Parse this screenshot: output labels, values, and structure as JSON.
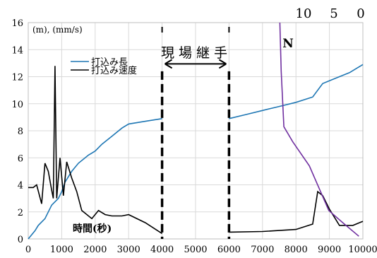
{
  "chart_data": {
    "type": "line",
    "title": "",
    "xlabel": "時間(秒)",
    "ylabel": "(m), (mm/s)",
    "xlim": [
      0,
      10000
    ],
    "ylim": [
      0,
      16
    ],
    "x_ticks": [
      "0",
      "1000",
      "2000",
      "3000",
      "4000",
      "5000",
      "6000",
      "7000",
      "8000",
      "9000",
      "10000"
    ],
    "y_ticks": [
      "0",
      "2",
      "4",
      "6",
      "8",
      "10",
      "12",
      "14",
      "16"
    ],
    "top_axis_ticks": [
      "10",
      "5",
      "0"
    ],
    "annotations": {
      "joint": "現 場 継 手",
      "n_label": "N"
    },
    "series": [
      {
        "name": "打込み長",
        "color": "#1f77b4",
        "segments": [
          [
            [
              0,
              0
            ],
            [
              200,
              0.6
            ],
            [
              300,
              1.0
            ],
            [
              500,
              1.5
            ],
            [
              700,
              2.5
            ],
            [
              900,
              3.0
            ],
            [
              1000,
              3.5
            ],
            [
              1100,
              4.2
            ],
            [
              1300,
              5.0
            ],
            [
              1500,
              5.6
            ],
            [
              1800,
              6.2
            ],
            [
              2000,
              6.5
            ],
            [
              2200,
              7.0
            ],
            [
              2500,
              7.6
            ],
            [
              2800,
              8.2
            ],
            [
              3000,
              8.5
            ],
            [
              3500,
              8.7
            ],
            [
              4000,
              8.9
            ]
          ],
          [
            [
              6000,
              8.9
            ],
            [
              6500,
              9.2
            ],
            [
              7000,
              9.5
            ],
            [
              7500,
              9.8
            ],
            [
              8000,
              10.1
            ],
            [
              8500,
              10.5
            ],
            [
              8800,
              11.5
            ],
            [
              9200,
              11.9
            ],
            [
              9600,
              12.3
            ],
            [
              10000,
              12.9
            ]
          ]
        ]
      },
      {
        "name": "打込み速度",
        "color": "#000000",
        "segments": [
          [
            [
              0,
              3.8
            ],
            [
              150,
              3.8
            ],
            [
              250,
              4.0
            ],
            [
              400,
              2.6
            ],
            [
              500,
              5.6
            ],
            [
              600,
              5.0
            ],
            [
              700,
              3.6
            ],
            [
              750,
              3.0
            ],
            [
              800,
              12.8
            ],
            [
              850,
              3.0
            ],
            [
              950,
              6.0
            ],
            [
              1050,
              3.2
            ],
            [
              1150,
              5.7
            ],
            [
              1300,
              4.5
            ],
            [
              1450,
              3.5
            ],
            [
              1600,
              2.1
            ],
            [
              1900,
              1.5
            ],
            [
              2100,
              2.1
            ],
            [
              2300,
              1.8
            ],
            [
              2500,
              1.7
            ],
            [
              2800,
              1.7
            ],
            [
              3000,
              1.8
            ],
            [
              3500,
              1.2
            ],
            [
              4000,
              0.4
            ]
          ],
          [
            [
              6000,
              0.5
            ],
            [
              7000,
              0.55
            ],
            [
              8000,
              0.7
            ],
            [
              8500,
              1.1
            ],
            [
              8650,
              3.5
            ],
            [
              8800,
              3.2
            ],
            [
              9000,
              2.2
            ],
            [
              9300,
              1.0
            ],
            [
              9700,
              1.0
            ],
            [
              10000,
              1.3
            ]
          ]
        ]
      },
      {
        "name": "N",
        "color": "#7030a0",
        "segments": [
          [
            [
              7520,
              16
            ],
            [
              7560,
              12.4
            ],
            [
              7640,
              8.3
            ],
            [
              7900,
              7.2
            ],
            [
              8400,
              5.4
            ],
            [
              8980,
              2.1
            ],
            [
              9400,
              1.2
            ],
            [
              9880,
              0.2
            ]
          ]
        ]
      }
    ]
  }
}
